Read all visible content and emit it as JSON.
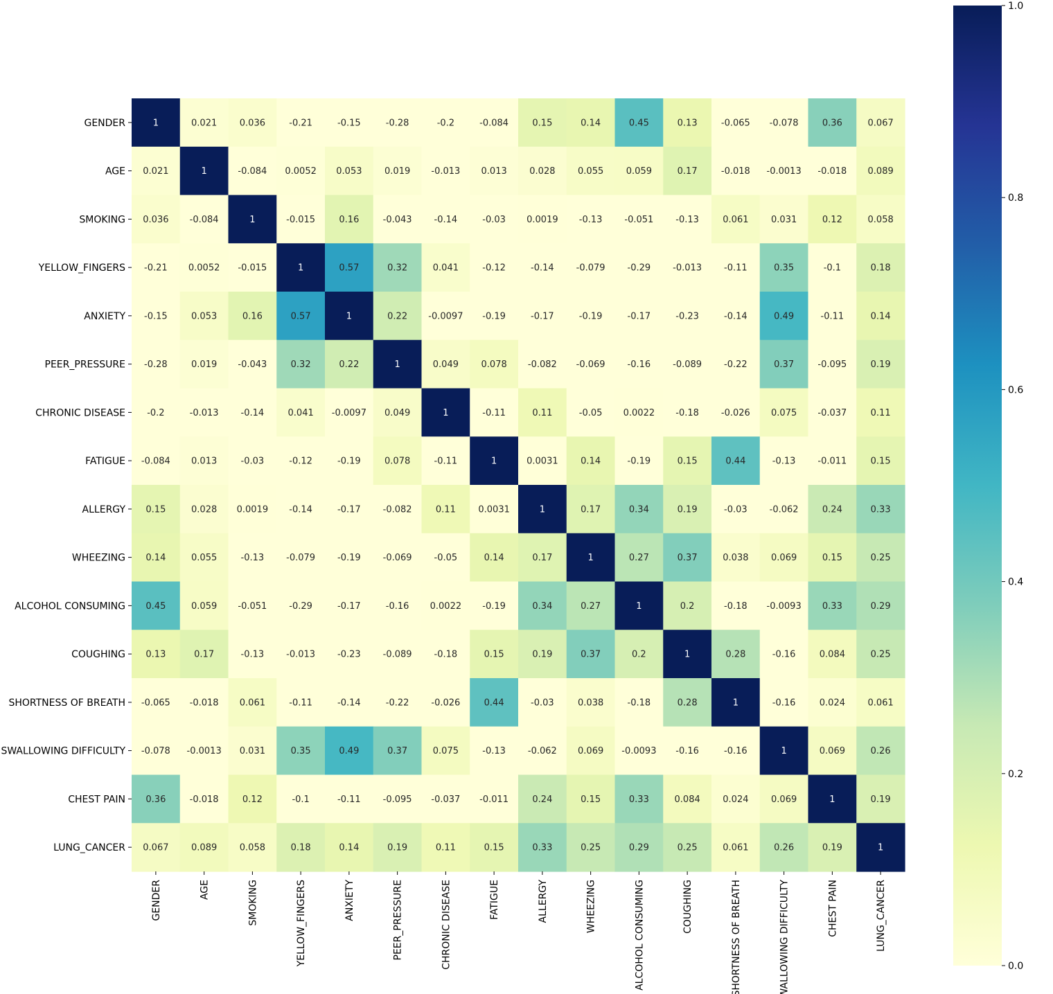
{
  "chart_data": {
    "type": "heatmap",
    "title": "",
    "xlabel": "",
    "ylabel": "",
    "rows": [
      "GENDER",
      "AGE",
      "SMOKING",
      "YELLOW_FINGERS",
      "ANXIETY",
      "PEER_PRESSURE",
      "CHRONIC DISEASE",
      "FATIGUE ",
      "ALLERGY ",
      "WHEEZING",
      "ALCOHOL CONSUMING",
      "COUGHING",
      "SHORTNESS OF BREATH",
      "SWALLOWING DIFFICULTY",
      "CHEST PAIN",
      "LUNG_CANCER"
    ],
    "columns": [
      "GENDER",
      "AGE",
      "SMOKING",
      "YELLOW_FINGERS",
      "ANXIETY",
      "PEER_PRESSURE",
      "CHRONIC DISEASE",
      "FATIGUE ",
      "ALLERGY ",
      "WHEEZING",
      "ALCOHOL CONSUMING",
      "COUGHING",
      "SHORTNESS OF BREATH",
      "SWALLOWING DIFFICULTY",
      "CHEST PAIN",
      "LUNG_CANCER"
    ],
    "values": [
      [
        "1",
        "0.021",
        "0.036",
        "-0.21",
        "-0.15",
        "-0.28",
        "-0.2",
        "-0.084",
        "0.15",
        "0.14",
        "0.45",
        "0.13",
        "-0.065",
        "-0.078",
        "0.36",
        "0.067"
      ],
      [
        "0.021",
        "1",
        "-0.084",
        "0.0052",
        "0.053",
        "0.019",
        "-0.013",
        "0.013",
        "0.028",
        "0.055",
        "0.059",
        "0.17",
        "-0.018",
        "-0.0013",
        "-0.018",
        "0.089"
      ],
      [
        "0.036",
        "-0.084",
        "1",
        "-0.015",
        "0.16",
        "-0.043",
        "-0.14",
        "-0.03",
        "0.0019",
        "-0.13",
        "-0.051",
        "-0.13",
        "0.061",
        "0.031",
        "0.12",
        "0.058"
      ],
      [
        "-0.21",
        "0.0052",
        "-0.015",
        "1",
        "0.57",
        "0.32",
        "0.041",
        "-0.12",
        "-0.14",
        "-0.079",
        "-0.29",
        "-0.013",
        "-0.11",
        "0.35",
        "-0.1",
        "0.18"
      ],
      [
        "-0.15",
        "0.053",
        "0.16",
        "0.57",
        "1",
        "0.22",
        "-0.0097",
        "-0.19",
        "-0.17",
        "-0.19",
        "-0.17",
        "-0.23",
        "-0.14",
        "0.49",
        "-0.11",
        "0.14"
      ],
      [
        "-0.28",
        "0.019",
        "-0.043",
        "0.32",
        "0.22",
        "1",
        "0.049",
        "0.078",
        "-0.082",
        "-0.069",
        "-0.16",
        "-0.089",
        "-0.22",
        "0.37",
        "-0.095",
        "0.19"
      ],
      [
        "-0.2",
        "-0.013",
        "-0.14",
        "0.041",
        "-0.0097",
        "0.049",
        "1",
        "-0.11",
        "0.11",
        "-0.05",
        "0.0022",
        "-0.18",
        "-0.026",
        "0.075",
        "-0.037",
        "0.11"
      ],
      [
        "-0.084",
        "0.013",
        "-0.03",
        "-0.12",
        "-0.19",
        "0.078",
        "-0.11",
        "1",
        "0.0031",
        "0.14",
        "-0.19",
        "0.15",
        "0.44",
        "-0.13",
        "-0.011",
        "0.15"
      ],
      [
        "0.15",
        "0.028",
        "0.0019",
        "-0.14",
        "-0.17",
        "-0.082",
        "0.11",
        "0.0031",
        "1",
        "0.17",
        "0.34",
        "0.19",
        "-0.03",
        "-0.062",
        "0.24",
        "0.33"
      ],
      [
        "0.14",
        "0.055",
        "-0.13",
        "-0.079",
        "-0.19",
        "-0.069",
        "-0.05",
        "0.14",
        "0.17",
        "1",
        "0.27",
        "0.37",
        "0.038",
        "0.069",
        "0.15",
        "0.25"
      ],
      [
        "0.45",
        "0.059",
        "-0.051",
        "-0.29",
        "-0.17",
        "-0.16",
        "0.0022",
        "-0.19",
        "0.34",
        "0.27",
        "1",
        "0.2",
        "-0.18",
        "-0.0093",
        "0.33",
        "0.29"
      ],
      [
        "0.13",
        "0.17",
        "-0.13",
        "-0.013",
        "-0.23",
        "-0.089",
        "-0.18",
        "0.15",
        "0.19",
        "0.37",
        "0.2",
        "1",
        "0.28",
        "-0.16",
        "0.084",
        "0.25"
      ],
      [
        "-0.065",
        "-0.018",
        "0.061",
        "-0.11",
        "-0.14",
        "-0.22",
        "-0.026",
        "0.44",
        "-0.03",
        "0.038",
        "-0.18",
        "0.28",
        "1",
        "-0.16",
        "0.024",
        "0.061"
      ],
      [
        "-0.078",
        "-0.0013",
        "0.031",
        "0.35",
        "0.49",
        "0.37",
        "0.075",
        "-0.13",
        "-0.062",
        "0.069",
        "-0.0093",
        "-0.16",
        "-0.16",
        "1",
        "0.069",
        "0.26"
      ],
      [
        "0.36",
        "-0.018",
        "0.12",
        "-0.1",
        "-0.11",
        "-0.095",
        "-0.037",
        "-0.011",
        "0.24",
        "0.15",
        "0.33",
        "0.084",
        "0.024",
        "0.069",
        "1",
        "0.19"
      ],
      [
        "0.067",
        "0.089",
        "0.058",
        "0.18",
        "0.14",
        "0.19",
        "0.11",
        "0.15",
        "0.33",
        "0.25",
        "0.29",
        "0.25",
        "0.061",
        "0.26",
        "0.19",
        "1"
      ]
    ],
    "color_scale": {
      "colormap": "YlGnBu",
      "vmin": 0.0,
      "vmax": 1.0,
      "ticks": [
        "0.0",
        "0.2",
        "0.4",
        "0.6",
        "0.8",
        "1.0"
      ],
      "stops": [
        "#ffffd9",
        "#edf8b1",
        "#c7e9b4",
        "#7fcdbb",
        "#41b6c4",
        "#1d91c0",
        "#225ea8",
        "#253494",
        "#081d58"
      ]
    }
  }
}
